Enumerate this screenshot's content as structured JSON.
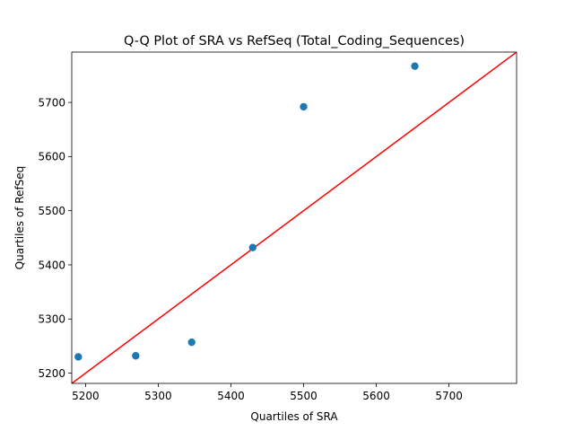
{
  "chart_data": {
    "type": "scatter",
    "title": "Q-Q Plot of SRA vs RefSeq (Total_Coding_Sequences)",
    "xlabel": "Quartiles of SRA",
    "ylabel": "Quartiles of RefSeq",
    "xlim": [
      5181,
      5793
    ],
    "ylim": [
      5181,
      5793
    ],
    "xticks": [
      5200,
      5300,
      5400,
      5500,
      5600,
      5700
    ],
    "yticks": [
      5200,
      5300,
      5400,
      5500,
      5600,
      5700
    ],
    "grid": false,
    "points": [
      {
        "x": 5190,
        "y": 5230
      },
      {
        "x": 5269,
        "y": 5232
      },
      {
        "x": 5346,
        "y": 5257
      },
      {
        "x": 5430,
        "y": 5432
      },
      {
        "x": 5500,
        "y": 5692
      },
      {
        "x": 5653,
        "y": 5767
      }
    ],
    "reference_line": {
      "from": [
        5181,
        5181
      ],
      "to": [
        5793,
        5793
      ]
    },
    "colors": {
      "points": "#1f77b4",
      "line": "#ff0000"
    }
  }
}
